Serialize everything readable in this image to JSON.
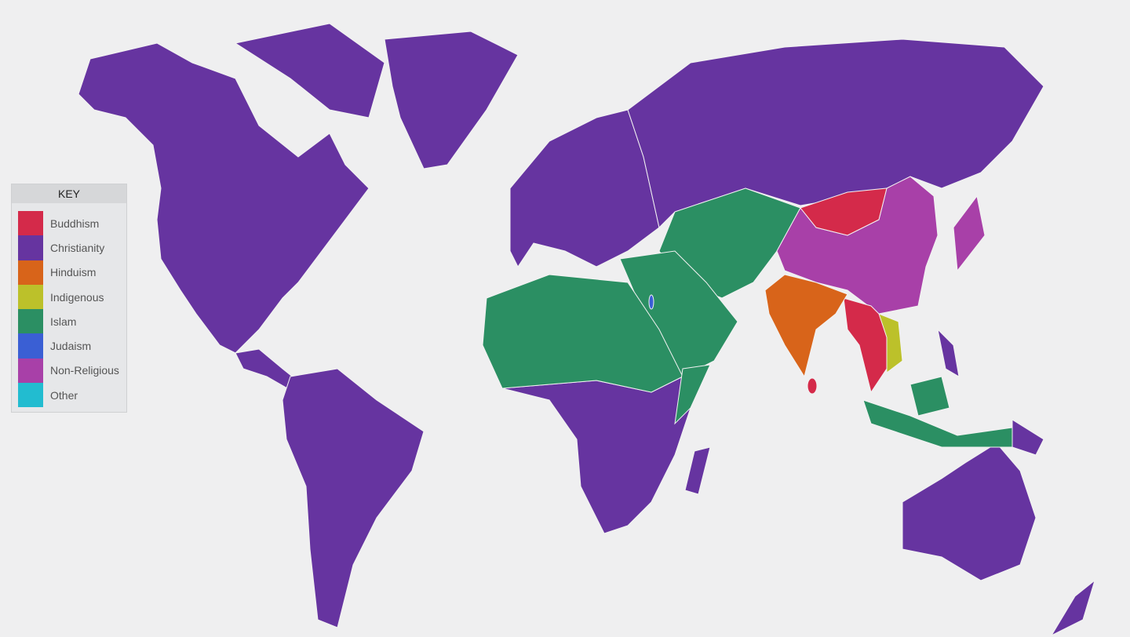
{
  "legend": {
    "title": "KEY",
    "items": [
      {
        "label": "Buddhism",
        "color": "#d42a4a"
      },
      {
        "label": "Christianity",
        "color": "#6634a0"
      },
      {
        "label": "Hinduism",
        "color": "#d8641a"
      },
      {
        "label": "Indigenous",
        "color": "#bcc12a"
      },
      {
        "label": "Islam",
        "color": "#2b8f63"
      },
      {
        "label": "Judaism",
        "color": "#3a5fd4"
      },
      {
        "label": "Non-Religious",
        "color": "#a840a8"
      },
      {
        "label": "Other",
        "color": "#22bcd0"
      }
    ]
  },
  "background": "#efeff0"
}
